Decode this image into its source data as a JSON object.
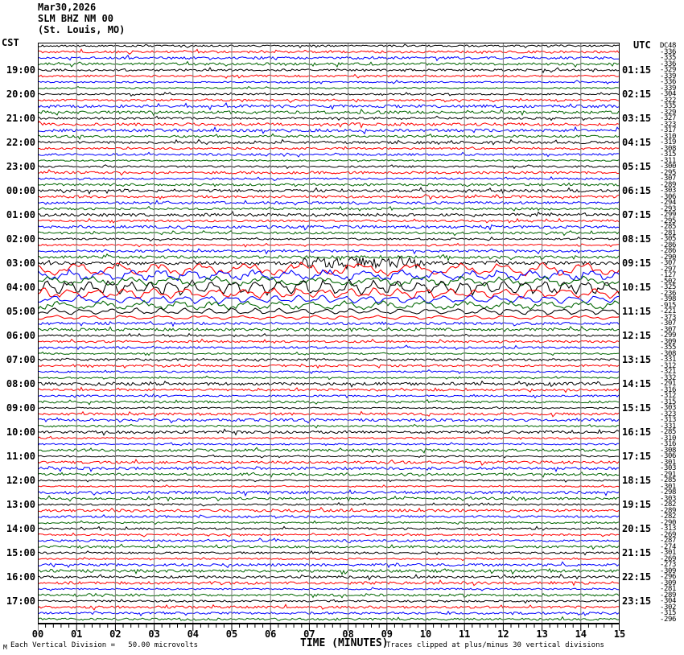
{
  "header": {
    "date": "Mar30,2026",
    "station": "SLM BHZ NM 00",
    "location": "(St. Louis, MO)"
  },
  "axes": {
    "tz_left": "CST",
    "tz_right": "UTC",
    "left_labels": [
      "19:00",
      "20:00",
      "21:00",
      "22:00",
      "23:00",
      "00:00",
      "01:00",
      "02:00",
      "03:00",
      "04:00",
      "05:00",
      "06:00",
      "07:00",
      "08:00",
      "09:00",
      "10:00",
      "11:00",
      "12:00",
      "13:00",
      "14:00",
      "15:00",
      "16:00",
      "17:00"
    ],
    "right_labels": [
      "01:15",
      "02:15",
      "03:15",
      "04:15",
      "05:15",
      "06:15",
      "07:15",
      "08:15",
      "09:15",
      "10:15",
      "11:15",
      "12:15",
      "13:15",
      "14:15",
      "15:15",
      "16:15",
      "17:15",
      "18:15",
      "19:15",
      "20:15",
      "21:15",
      "22:15",
      "23:15"
    ],
    "minute_labels": [
      "00",
      "01",
      "02",
      "03",
      "04",
      "05",
      "06",
      "07",
      "08",
      "09",
      "10",
      "11",
      "12",
      "13",
      "14",
      "15"
    ]
  },
  "footer": {
    "watermark": "M",
    "scale_note": "Each Vertical Division =   50.00 microvolts",
    "xlabel": "TIME (MINUTES)",
    "clip_note": "Traces clipped at plus/minus 30 vertical divisions"
  },
  "chart_data": {
    "type": "line",
    "subtype": "helicorder-seismogram",
    "title": "SLM BHZ NM 00 (St. Louis, MO) Mar30,2026",
    "xlabel": "TIME (MINUTES)",
    "x_range": [
      0,
      15
    ],
    "minutes_per_line": 15,
    "lines": 96,
    "lines_per_hour": 4,
    "grid": true,
    "grid_color": "#7d7d7d",
    "trace_colors": [
      "#000000",
      "#ff0000",
      "#0000ff",
      "#006600"
    ],
    "vertical_division_microvolts": 50.0,
    "clip_divisions": 30,
    "event_note": "High-amplitude low-frequency signal from about 03:00 to 05:30 CST (09:15-11:15 UTC rows)",
    "amp_overrides": {
      "36": 2.0,
      "37": 8,
      "38": 7,
      "39": 6,
      "40": 9.5,
      "41": 6.5,
      "42": 5,
      "43": 5.5,
      "44": 4,
      "45": 2.6,
      "46": 1.6,
      "47": 1.6
    },
    "bursts": {
      "36": [
        330,
        480,
        13
      ]
    },
    "dc_offsets": [
      "DC48",
      "-336",
      "-335",
      "-336",
      "-329",
      "-339",
      "-336",
      "-339",
      "-304",
      "-322",
      "-335",
      "-329",
      "-327",
      "-323",
      "-317",
      "-310",
      "-319",
      "-308",
      "-315",
      "-311",
      "-300",
      "-295",
      "-307",
      "-289",
      "-303",
      "-306",
      "-294",
      "-293",
      "-299",
      "-295",
      "-285",
      "-281",
      "-305",
      "-286",
      "-286",
      "-290",
      "-307",
      "-297",
      "-127",
      "-502",
      "-325",
      "-236",
      "-398",
      "-915",
      "-221",
      "-373",
      "-307",
      "-307",
      "-299",
      "-309",
      "-355",
      "-308",
      "-331",
      "-312",
      "-321",
      "-332",
      "-291",
      "-316",
      "-312",
      "-315",
      "-303",
      "-323",
      "-313",
      "-331",
      "-285",
      "-310",
      "-316",
      "-308",
      "-306",
      "-301",
      "-303",
      "-291",
      "-285",
      "-301",
      "-298",
      "-303",
      "-282",
      "-289",
      "-282",
      "-290",
      "-313",
      "-269",
      "-287",
      "-274",
      "-301",
      "-269",
      "-273",
      "-309",
      "-296",
      "-309",
      "-281",
      "-289",
      "-304",
      "-302",
      "-315",
      "-296"
    ]
  }
}
